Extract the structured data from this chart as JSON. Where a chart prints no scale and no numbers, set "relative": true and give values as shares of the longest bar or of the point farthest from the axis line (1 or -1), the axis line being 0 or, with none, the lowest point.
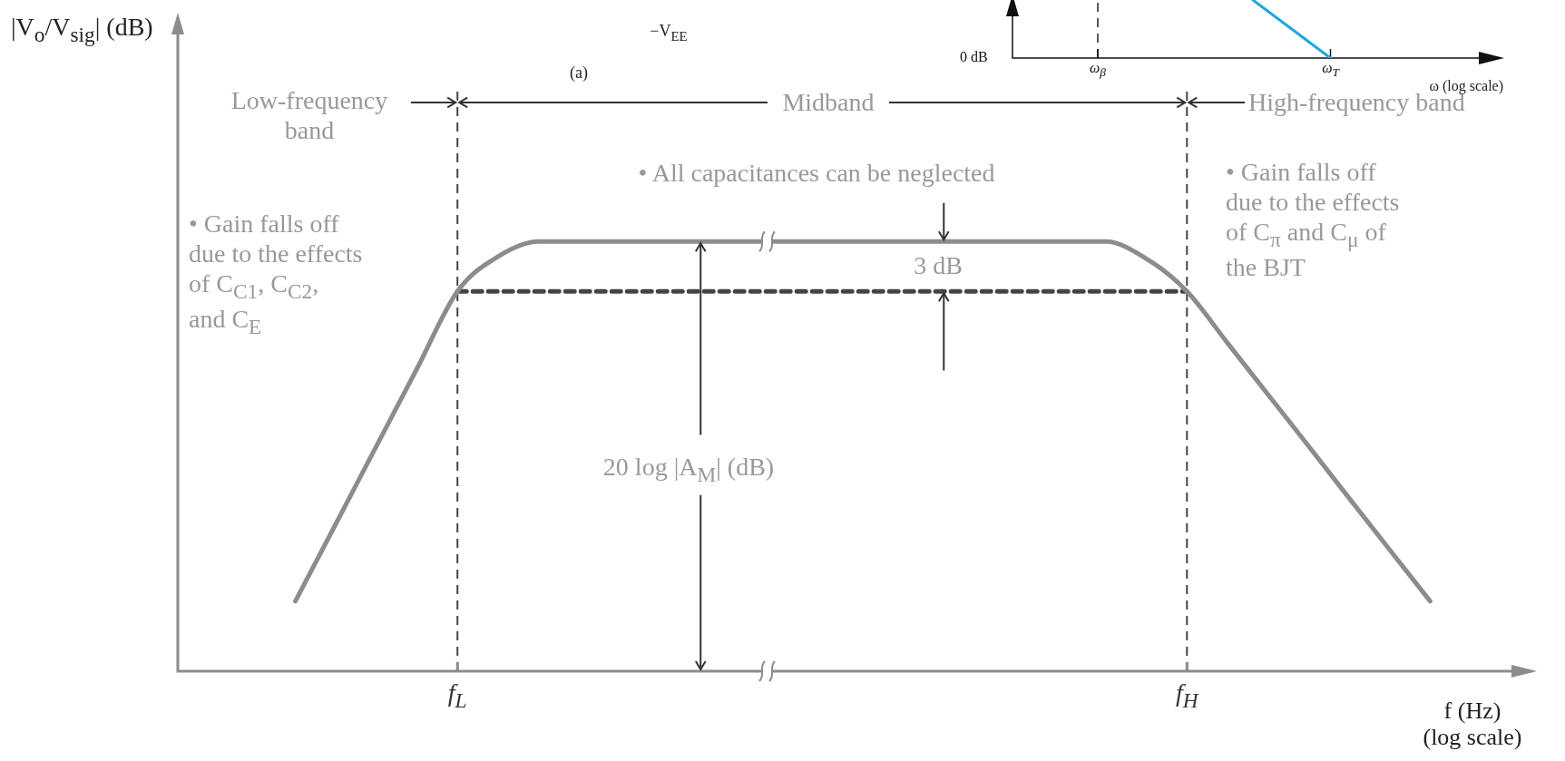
{
  "chart_data": [
    {
      "type": "line",
      "relative": true,
      "ylabel": "|V$_{o}$/V$_{sig}$| (dB)",
      "xlabel": "f (Hz)\n(log scale)",
      "legend": false,
      "marker": "none",
      "categories": [
        null,
        null,
        null,
        null,
        null,
        null,
        "f$_{L}$",
        null,
        null,
        null,
        null,
        null,
        null,
        null,
        null,
        null,
        null,
        null,
        null,
        null,
        null,
        null,
        null,
        null,
        "f$_{H}$",
        null,
        null,
        null,
        null,
        null,
        null,
        null,
        null
      ],
      "series": [
        {
          "color": "#8c8c8c",
          "values": [
            null,
            null,
            0.163,
            0.343,
            0.524,
            0.704,
            0.884,
            0.965,
            1,
            1,
            1,
            1,
            1,
            1,
            1,
            1,
            1,
            1,
            1,
            1,
            1,
            1,
            1,
            0.96,
            0.884,
            0.764,
            0.644,
            0.524,
            0.403,
            0.283,
            0.163,
            null,
            null
          ]
        },
        {
          "color": "#444444",
          "line_style": "dashed",
          "values": [
            null,
            null,
            null,
            null,
            null,
            null,
            0.884,
            0.884,
            0.884,
            0.884,
            0.884,
            0.884,
            0.884,
            0.884,
            0.884,
            0.884,
            0.884,
            0.884,
            0.884,
            0.884,
            0.884,
            0.884,
            0.884,
            0.884,
            0.884,
            null,
            null,
            null,
            null,
            null,
            null,
            null,
            null
          ]
        }
      ],
      "ref_lines": [
        {
          "axis": "x",
          "value": "f$_{L}$",
          "line_style": "dashed",
          "color": "#444444"
        },
        {
          "axis": "x",
          "value": "f$_{H}$",
          "line_style": "dashed",
          "color": "#444444"
        }
      ],
      "annotations": [
        "Low-frequency\nband",
        "Midband",
        "High-frequency band",
        "• All capacitances can be neglected",
        "• Gain falls off\ndue to the effects\nof C$_{C1}$, C$_{C2}$,\nand C$_{E}$",
        "• Gain falls off\ndue to the effects\nof C$_{π}$ and C$_{μ}$ of\nthe BJT",
        "3 dB",
        "20 log |A$_{M}$| (dB)",
        "(a)",
        "−V$_{EE}$"
      ]
    },
    {
      "type": "line",
      "relative": true,
      "xlabel": "ω (log scale)",
      "legend": false,
      "marker": "none",
      "categories": [
        null,
        "ω$_{β}$",
        null,
        null,
        "ω$_{T}$",
        null,
        null
      ],
      "series": [
        {
          "color": "#1ba9dd",
          "values": [
            null,
            null,
            null,
            1,
            0,
            null,
            null
          ]
        }
      ],
      "ref_lines": [
        {
          "axis": "x",
          "value": "ω$_{β}$",
          "line_style": "dashed",
          "color": "#222222"
        }
      ],
      "annotations": [
        "0 dB"
      ]
    }
  ]
}
